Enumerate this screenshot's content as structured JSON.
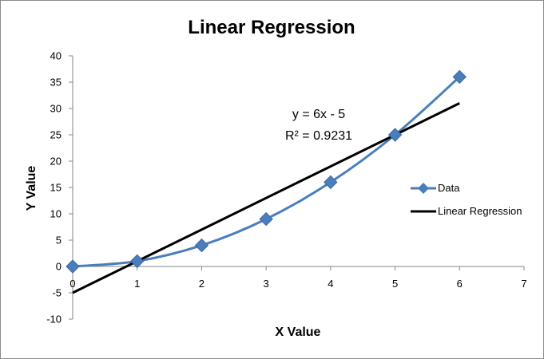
{
  "chart_data": {
    "type": "scatter",
    "title": "Linear Regression",
    "xlabel": "X Value",
    "ylabel": "Y Value",
    "xlim": [
      0,
      7
    ],
    "ylim": [
      -10,
      40
    ],
    "x_ticks": [
      0,
      1,
      2,
      3,
      4,
      5,
      6,
      7
    ],
    "y_ticks": [
      -10,
      -5,
      0,
      5,
      10,
      15,
      20,
      25,
      30,
      35,
      40
    ],
    "grid": false,
    "legend_position": "right",
    "series": [
      {
        "name": "Data",
        "x": [
          0,
          1,
          2,
          3,
          4,
          5,
          6
        ],
        "y": [
          0,
          1,
          4,
          9,
          16,
          25,
          36
        ],
        "color": "#4a7ebb",
        "marker": "diamond",
        "line": "smooth"
      },
      {
        "name": "Linear Regression",
        "x": [
          0,
          6
        ],
        "y": [
          -5,
          31
        ],
        "color": "#000000",
        "marker": "none",
        "line": "straight"
      }
    ],
    "annotations": [
      "y = 6x - 5",
      "R² = 0.9231"
    ]
  }
}
